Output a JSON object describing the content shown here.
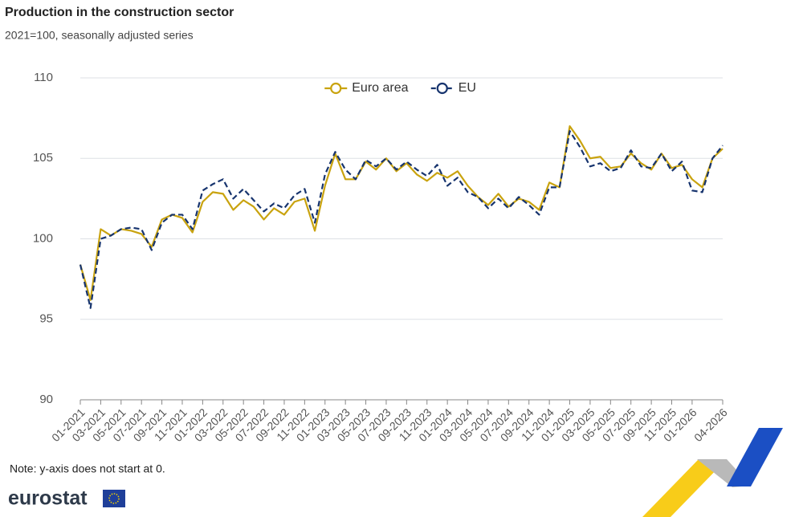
{
  "chart_data": {
    "type": "line",
    "title": "Production in the construction sector",
    "subtitle": "2021=100, seasonally adjusted series",
    "note": "Note: y-axis does not start at 0.",
    "categories": [
      "01-2021",
      null,
      "03-2021",
      null,
      "05-2021",
      null,
      "07-2021",
      null,
      "09-2021",
      null,
      "11-2021",
      null,
      "01-2022",
      null,
      "03-2022",
      null,
      "05-2022",
      null,
      "07-2022",
      null,
      "09-2022",
      null,
      "11-2022",
      null,
      "01-2023",
      null,
      "03-2023",
      null,
      "05-2023",
      null,
      "07-2023",
      null,
      "09-2023",
      null,
      "11-2023",
      null,
      "01-2024",
      null,
      "03-2024",
      null,
      "05-2024",
      null,
      "07-2024",
      null,
      "09-2024",
      null,
      "11-2024",
      null,
      "01-2025",
      null,
      "03-2025",
      null,
      "05-2025",
      null,
      "07-2025",
      null,
      "09-2025",
      null,
      "11-2025",
      null,
      "01-2026",
      null,
      null,
      "04-2026"
    ],
    "series": [
      {
        "name": "Euro area",
        "color": "#c9a30f",
        "dashed": false,
        "values": [
          98.4,
          96.2,
          100.6,
          100.2,
          100.6,
          100.5,
          100.3,
          99.5,
          101.2,
          101.5,
          101.3,
          100.4,
          102.3,
          102.9,
          102.8,
          101.8,
          102.4,
          102.0,
          101.2,
          101.9,
          101.5,
          102.3,
          102.5,
          100.5,
          103.3,
          105.3,
          103.7,
          103.7,
          104.8,
          104.3,
          105.0,
          104.2,
          104.7,
          104.0,
          103.6,
          104.1,
          103.8,
          104.2,
          103.3,
          102.6,
          102.1,
          102.8,
          102.0,
          102.5,
          102.3,
          101.8,
          103.5,
          103.2,
          107.0,
          106.1,
          105.0,
          105.1,
          104.4,
          104.5,
          105.3,
          104.7,
          104.3,
          105.3,
          104.4,
          104.6,
          103.7,
          103.2,
          105.0,
          105.6
        ]
      },
      {
        "name": "EU",
        "color": "#17346e",
        "dashed": true,
        "values": [
          98.4,
          95.7,
          100.0,
          100.2,
          100.6,
          100.7,
          100.6,
          99.3,
          101.0,
          101.5,
          101.5,
          100.6,
          103.0,
          103.4,
          103.7,
          102.5,
          103.1,
          102.4,
          101.7,
          102.2,
          101.9,
          102.7,
          103.1,
          101.0,
          104.0,
          105.4,
          104.3,
          103.7,
          104.9,
          104.5,
          105.0,
          104.3,
          104.8,
          104.3,
          103.9,
          104.6,
          103.3,
          103.8,
          102.9,
          102.6,
          101.9,
          102.5,
          101.9,
          102.6,
          102.1,
          101.5,
          103.2,
          103.2,
          106.7,
          105.7,
          104.5,
          104.7,
          104.2,
          104.4,
          105.5,
          104.5,
          104.4,
          105.3,
          104.2,
          104.8,
          103.0,
          102.9,
          105.0,
          105.8
        ]
      }
    ],
    "ylim": [
      90,
      110
    ],
    "yticks": [
      90,
      95,
      100,
      105,
      110
    ],
    "grid": true,
    "legend": "top"
  },
  "branding": {
    "logo": "eurostat"
  }
}
